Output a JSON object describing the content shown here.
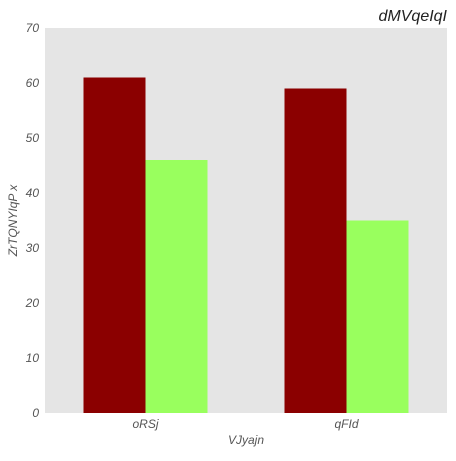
{
  "chart_data": {
    "type": "bar",
    "title": "dMVqeIqI",
    "xlabel": "VJyajn",
    "ylabel": "ZrTQNYIqP x",
    "categories": [
      "oRSj",
      "qFId"
    ],
    "series": [
      {
        "values": [
          61,
          59
        ],
        "color": "#8b0000"
      },
      {
        "values": [
          46,
          35
        ],
        "color": "#99ff5e"
      }
    ],
    "ylim": [
      0,
      70
    ],
    "yticks": [
      0,
      10,
      20,
      30,
      40,
      50,
      60,
      70
    ],
    "grid": false,
    "legend": "none",
    "background": "#e5e5e5"
  }
}
